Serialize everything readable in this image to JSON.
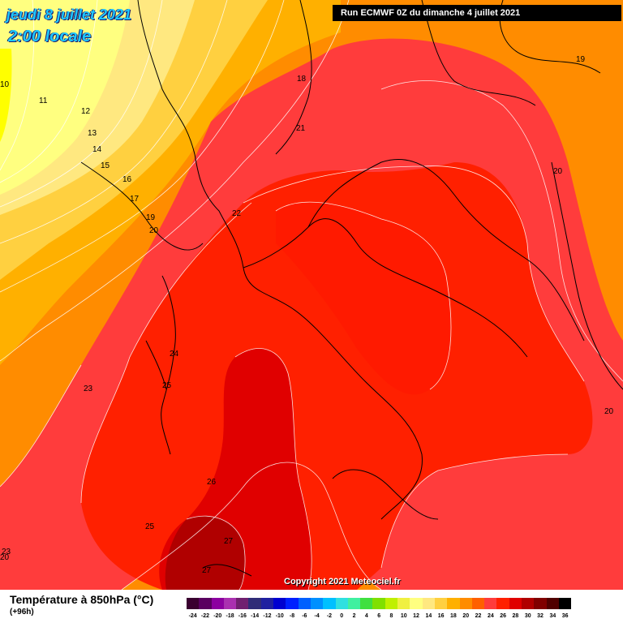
{
  "header": {
    "date_title": "jeudi 8 juillet 2021",
    "time_title": "2:00 locale",
    "run_info": "Run ECMWF 0Z du dimanche 4 juillet 2021"
  },
  "copyright": "Copyright 2021 Meteociel.fr",
  "legend": {
    "title": "Température à 850hPa (°C)",
    "subtitle": "(+96h)",
    "stops": [
      {
        "value": "-24",
        "color": "#3a0030"
      },
      {
        "value": "-22",
        "color": "#5a0060"
      },
      {
        "value": "-20",
        "color": "#8c00a0"
      },
      {
        "value": "-18",
        "color": "#aa30b0"
      },
      {
        "value": "-16",
        "color": "#702070"
      },
      {
        "value": "-14",
        "color": "#302c78"
      },
      {
        "value": "-12",
        "color": "#2020a0"
      },
      {
        "value": "-10",
        "color": "#0000d0"
      },
      {
        "value": "-8",
        "color": "#0020ff"
      },
      {
        "value": "-6",
        "color": "#0060ff"
      },
      {
        "value": "-4",
        "color": "#0090ff"
      },
      {
        "value": "-2",
        "color": "#00c0ff"
      },
      {
        "value": "0",
        "color": "#30e0e0"
      },
      {
        "value": "2",
        "color": "#40f0a0"
      },
      {
        "value": "4",
        "color": "#40e040"
      },
      {
        "value": "6",
        "color": "#80e000"
      },
      {
        "value": "8",
        "color": "#c0f000"
      },
      {
        "value": "10",
        "color": "#f0f040"
      },
      {
        "value": "12",
        "color": "#ffff80"
      },
      {
        "value": "14",
        "color": "#ffe880"
      },
      {
        "value": "16",
        "color": "#ffd040"
      },
      {
        "value": "18",
        "color": "#ffb000"
      },
      {
        "value": "20",
        "color": "#ff8c00"
      },
      {
        "value": "22",
        "color": "#ff6000"
      },
      {
        "value": "24",
        "color": "#ff3c3c"
      },
      {
        "value": "26",
        "color": "#ff2000"
      },
      {
        "value": "28",
        "color": "#e00000"
      },
      {
        "value": "30",
        "color": "#b00000"
      },
      {
        "value": "32",
        "color": "#800000"
      },
      {
        "value": "34",
        "color": "#500000"
      },
      {
        "value": "36",
        "color": "#000000"
      }
    ]
  },
  "isotherm_labels": [
    "10",
    "11",
    "12",
    "13",
    "14",
    "15",
    "16",
    "17",
    "18",
    "19",
    "19",
    "20",
    "20",
    "20",
    "20",
    "21",
    "22",
    "23",
    "23",
    "24",
    "25",
    "25",
    "26",
    "27",
    "27"
  ]
}
